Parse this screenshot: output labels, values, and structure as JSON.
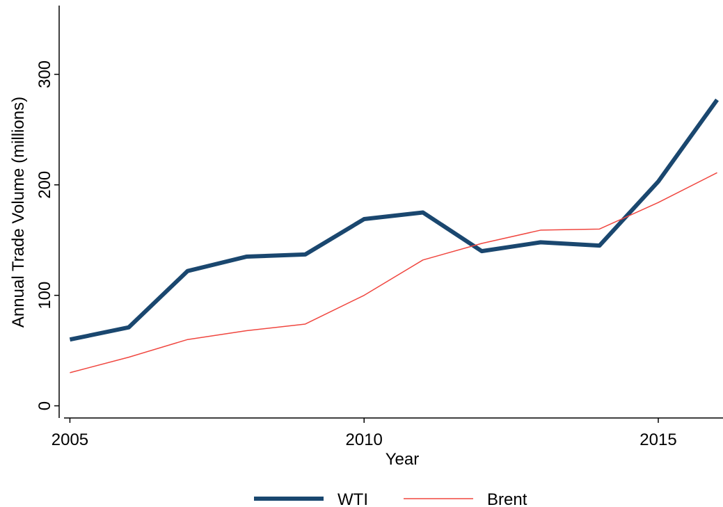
{
  "chart_data": {
    "type": "line",
    "x_label": "Year",
    "y_label": "Annual Trade Volume (millions)",
    "x": [
      2005,
      2006,
      2007,
      2008,
      2009,
      2010,
      2011,
      2012,
      2013,
      2014,
      2015,
      2016
    ],
    "series": [
      {
        "name": "WTI",
        "color": "#1a476f",
        "values": [
          60,
          71,
          122,
          135,
          137,
          169,
          175,
          140,
          148,
          145,
          203,
          277
        ]
      },
      {
        "name": "Brent",
        "color": "#f0463f",
        "values": [
          30,
          44,
          60,
          68,
          74,
          100,
          132,
          147,
          159,
          160,
          184,
          211
        ]
      }
    ],
    "xlim": [
      2004.9,
      2016.1
    ],
    "xticks": [
      2005,
      2010,
      2015
    ],
    "ylim": [
      -11,
      361
    ],
    "yticks": [
      0,
      100,
      200,
      300
    ],
    "grid": false,
    "legend": "bottom"
  }
}
